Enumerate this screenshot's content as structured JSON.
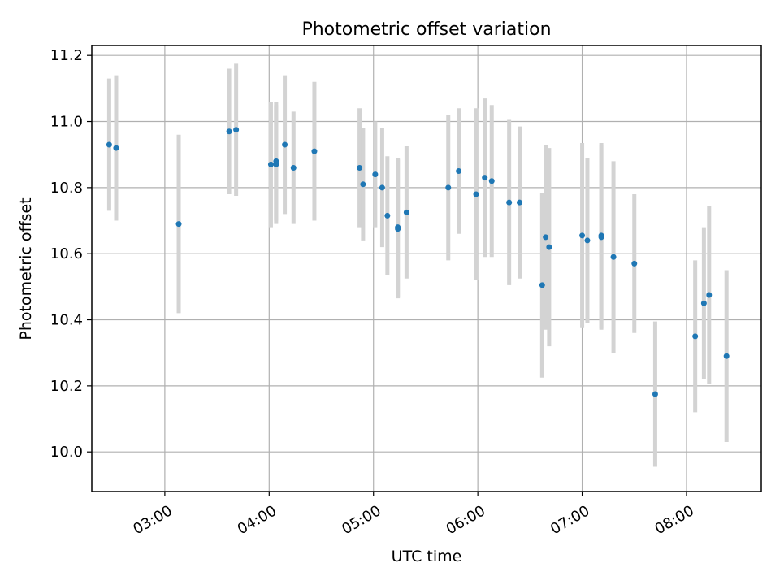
{
  "chart_data": {
    "type": "scatter",
    "title": "Photometric offset variation",
    "xlabel": "UTC time",
    "ylabel": "Photometric offset",
    "xlim": [
      "02:18",
      "08:43"
    ],
    "ylim": [
      9.88,
      11.23
    ],
    "xticks": [
      "03:00",
      "04:00",
      "05:00",
      "06:00",
      "07:00",
      "08:00"
    ],
    "yticks": [
      "10.0",
      "10.2",
      "10.4",
      "10.6",
      "10.8",
      "11.0",
      "11.2"
    ],
    "grid": true,
    "legend": "none",
    "colors": {
      "point": "#1f77b4",
      "errorbar": "#d3d3d3",
      "grid": "#b0b0b0"
    },
    "points": [
      {
        "x": "02:28",
        "y": 10.93,
        "yerr": 0.2
      },
      {
        "x": "02:32",
        "y": 10.92,
        "yerr": 0.22
      },
      {
        "x": "03:08",
        "y": 10.69,
        "yerr": 0.27
      },
      {
        "x": "03:37",
        "y": 10.97,
        "yerr": 0.19
      },
      {
        "x": "03:41",
        "y": 10.975,
        "yerr": 0.2
      },
      {
        "x": "04:01",
        "y": 10.87,
        "yerr": 0.19
      },
      {
        "x": "04:04",
        "y": 10.88,
        "yerr": 0.18
      },
      {
        "x": "04:04",
        "y": 10.87,
        "yerr": 0.18
      },
      {
        "x": "04:09",
        "y": 10.93,
        "yerr": 0.21
      },
      {
        "x": "04:14",
        "y": 10.86,
        "yerr": 0.17
      },
      {
        "x": "04:26",
        "y": 10.91,
        "yerr": 0.21
      },
      {
        "x": "04:52",
        "y": 10.86,
        "yerr": 0.18
      },
      {
        "x": "04:54",
        "y": 10.81,
        "yerr": 0.17
      },
      {
        "x": "05:01",
        "y": 10.84,
        "yerr": 0.16
      },
      {
        "x": "05:05",
        "y": 10.8,
        "yerr": 0.18
      },
      {
        "x": "05:08",
        "y": 10.715,
        "yerr": 0.18
      },
      {
        "x": "05:14",
        "y": 10.68,
        "yerr": 0.21
      },
      {
        "x": "05:14",
        "y": 10.675,
        "yerr": 0.21
      },
      {
        "x": "05:19",
        "y": 10.725,
        "yerr": 0.2
      },
      {
        "x": "05:43",
        "y": 10.8,
        "yerr": 0.22
      },
      {
        "x": "05:49",
        "y": 10.85,
        "yerr": 0.19
      },
      {
        "x": "05:59",
        "y": 10.78,
        "yerr": 0.26
      },
      {
        "x": "06:04",
        "y": 10.83,
        "yerr": 0.24
      },
      {
        "x": "06:08",
        "y": 10.82,
        "yerr": 0.23
      },
      {
        "x": "06:18",
        "y": 10.755,
        "yerr": 0.25
      },
      {
        "x": "06:24",
        "y": 10.755,
        "yerr": 0.23
      },
      {
        "x": "06:37",
        "y": 10.505,
        "yerr": 0.28
      },
      {
        "x": "06:39",
        "y": 10.65,
        "yerr": 0.28
      },
      {
        "x": "06:41",
        "y": 10.62,
        "yerr": 0.3
      },
      {
        "x": "07:00",
        "y": 10.655,
        "yerr": 0.28
      },
      {
        "x": "07:03",
        "y": 10.64,
        "yerr": 0.25
      },
      {
        "x": "07:11",
        "y": 10.655,
        "yerr": 0.28
      },
      {
        "x": "07:11",
        "y": 10.65,
        "yerr": 0.28
      },
      {
        "x": "07:18",
        "y": 10.59,
        "yerr": 0.29
      },
      {
        "x": "07:30",
        "y": 10.57,
        "yerr": 0.21
      },
      {
        "x": "07:42",
        "y": 10.175,
        "yerr": 0.22
      },
      {
        "x": "08:05",
        "y": 10.35,
        "yerr": 0.23
      },
      {
        "x": "08:10",
        "y": 10.45,
        "yerr": 0.23
      },
      {
        "x": "08:13",
        "y": 10.475,
        "yerr": 0.27
      },
      {
        "x": "08:23",
        "y": 10.29,
        "yerr": 0.26
      }
    ]
  }
}
